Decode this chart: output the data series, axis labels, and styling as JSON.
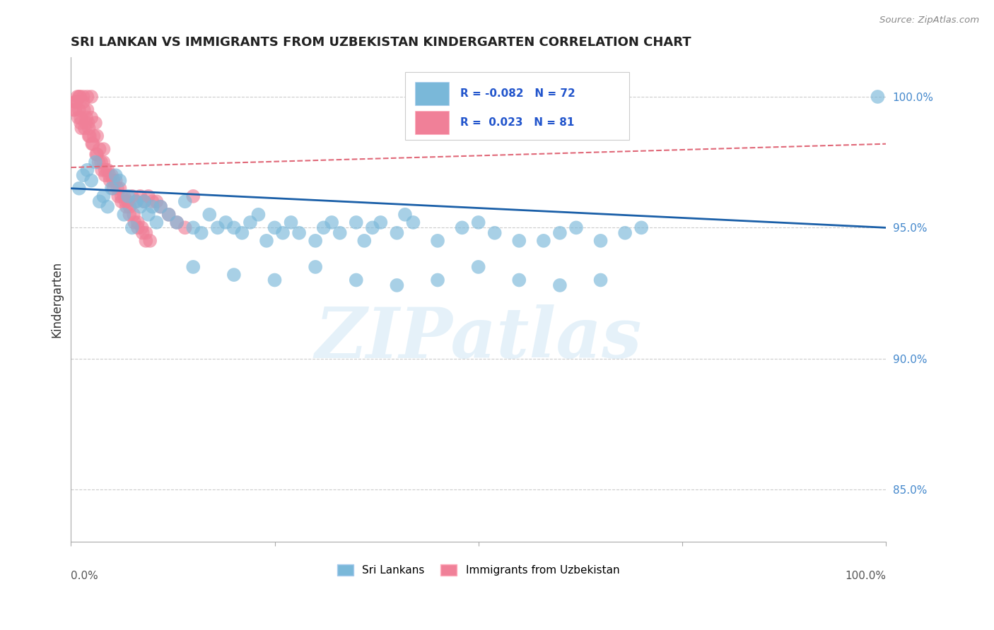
{
  "title": "SRI LANKAN VS IMMIGRANTS FROM UZBEKISTAN KINDERGARTEN CORRELATION CHART",
  "source": "Source: ZipAtlas.com",
  "ylabel": "Kindergarten",
  "xlim": [
    0,
    100
  ],
  "ylim": [
    83.0,
    101.5
  ],
  "yticks": [
    85.0,
    90.0,
    95.0,
    100.0
  ],
  "blue_R": -0.082,
  "blue_N": 72,
  "pink_R": 0.023,
  "pink_N": 81,
  "blue_color": "#7ab8d9",
  "pink_color": "#f08098",
  "blue_line_color": "#1a5fa8",
  "pink_line_color": "#e06878",
  "legend_label_blue": "Sri Lankans",
  "legend_label_pink": "Immigrants from Uzbekistan",
  "watermark": "ZIPatlas",
  "blue_x": [
    1.0,
    1.5,
    2.0,
    2.5,
    3.0,
    3.5,
    4.0,
    4.5,
    5.0,
    5.5,
    6.0,
    6.5,
    7.0,
    7.5,
    8.0,
    8.5,
    9.0,
    9.5,
    10.0,
    10.5,
    11.0,
    12.0,
    13.0,
    14.0,
    15.0,
    16.0,
    17.0,
    18.0,
    19.0,
    20.0,
    21.0,
    22.0,
    23.0,
    24.0,
    25.0,
    26.0,
    27.0,
    28.0,
    30.0,
    31.0,
    32.0,
    33.0,
    35.0,
    36.0,
    37.0,
    38.0,
    40.0,
    41.0,
    42.0,
    45.0,
    48.0,
    50.0,
    52.0,
    55.0,
    58.0,
    60.0,
    62.0,
    65.0,
    68.0,
    70.0,
    15.0,
    20.0,
    25.0,
    30.0,
    35.0,
    40.0,
    45.0,
    50.0,
    55.0,
    60.0,
    65.0,
    99.0
  ],
  "blue_y": [
    96.5,
    97.0,
    97.2,
    96.8,
    97.5,
    96.0,
    96.2,
    95.8,
    96.5,
    97.0,
    96.8,
    95.5,
    96.2,
    95.0,
    96.0,
    95.8,
    96.0,
    95.5,
    95.8,
    95.2,
    95.8,
    95.5,
    95.2,
    96.0,
    95.0,
    94.8,
    95.5,
    95.0,
    95.2,
    95.0,
    94.8,
    95.2,
    95.5,
    94.5,
    95.0,
    94.8,
    95.2,
    94.8,
    94.5,
    95.0,
    95.2,
    94.8,
    95.2,
    94.5,
    95.0,
    95.2,
    94.8,
    95.5,
    95.2,
    94.5,
    95.0,
    95.2,
    94.8,
    94.5,
    94.5,
    94.8,
    95.0,
    94.5,
    94.8,
    95.0,
    93.5,
    93.2,
    93.0,
    93.5,
    93.0,
    92.8,
    93.0,
    93.5,
    93.0,
    92.8,
    93.0,
    100.0
  ],
  "pink_x": [
    0.5,
    0.8,
    1.0,
    1.0,
    1.2,
    1.5,
    1.5,
    1.8,
    2.0,
    2.0,
    2.2,
    2.5,
    2.5,
    2.8,
    3.0,
    3.2,
    3.5,
    4.0,
    4.0,
    4.5,
    5.0,
    5.5,
    6.0,
    6.5,
    7.0,
    7.5,
    8.0,
    8.5,
    9.0,
    9.5,
    0.5,
    0.7,
    0.9,
    1.1,
    1.3,
    1.6,
    1.9,
    2.1,
    2.3,
    2.6,
    3.1,
    3.4,
    3.8,
    4.2,
    4.8,
    5.2,
    5.8,
    6.2,
    6.8,
    7.2,
    7.8,
    8.2,
    8.8,
    9.2,
    10.0,
    11.0,
    12.0,
    13.0,
    14.0,
    15.0,
    0.3,
    0.6,
    1.2,
    1.7,
    2.2,
    2.7,
    3.2,
    3.7,
    4.2,
    4.7,
    5.2,
    5.7,
    6.2,
    6.7,
    7.2,
    7.7,
    8.2,
    8.7,
    9.2,
    9.7,
    10.5
  ],
  "pink_y": [
    99.8,
    100.0,
    99.5,
    100.0,
    99.2,
    99.8,
    100.0,
    99.0,
    99.5,
    100.0,
    98.8,
    99.2,
    100.0,
    98.5,
    99.0,
    98.5,
    98.0,
    97.5,
    98.0,
    97.2,
    97.0,
    96.8,
    96.5,
    96.2,
    96.0,
    96.2,
    96.0,
    96.2,
    96.0,
    96.2,
    99.5,
    99.8,
    99.2,
    100.0,
    98.8,
    99.5,
    99.2,
    99.0,
    98.5,
    98.2,
    97.8,
    97.5,
    97.2,
    97.0,
    96.8,
    96.5,
    96.2,
    96.0,
    95.8,
    95.5,
    95.2,
    95.0,
    94.8,
    94.5,
    96.0,
    95.8,
    95.5,
    95.2,
    95.0,
    96.2,
    99.5,
    99.8,
    99.0,
    98.8,
    98.5,
    98.2,
    97.8,
    97.5,
    97.2,
    97.0,
    96.8,
    96.5,
    96.2,
    96.0,
    95.8,
    95.5,
    95.2,
    95.0,
    94.8,
    94.5,
    96.0
  ]
}
